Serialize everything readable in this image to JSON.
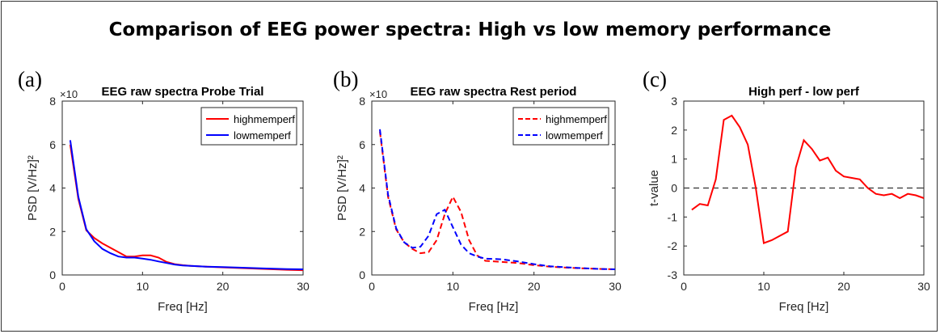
{
  "figure": {
    "title": "Comparison of EEG power spectra: High vs low memory performance",
    "panel_labels": [
      "(a)",
      "(b)",
      "(c)"
    ]
  },
  "chart_data": [
    {
      "type": "line",
      "title": "EEG raw spectra Probe Trial",
      "xlabel": "Freq [Hz]",
      "ylabel": "PSD [V/Hz]²",
      "exponent_label": "×10",
      "xlim": [
        0,
        30
      ],
      "ylim": [
        0,
        8
      ],
      "xticks": [
        0,
        10,
        20,
        30
      ],
      "yticks": [
        0,
        2,
        4,
        6,
        8
      ],
      "legend_position": "top-right",
      "series": [
        {
          "name": "highmemperf",
          "color": "#ff0000",
          "dash": "solid",
          "x": [
            1,
            2,
            3,
            4,
            5,
            6,
            7,
            8,
            9,
            10,
            11,
            12,
            13,
            14,
            15,
            16,
            18,
            20,
            22,
            25,
            28,
            30
          ],
          "y": [
            6.0,
            3.5,
            2.05,
            1.7,
            1.45,
            1.25,
            1.05,
            0.85,
            0.85,
            0.9,
            0.9,
            0.8,
            0.6,
            0.5,
            0.45,
            0.42,
            0.38,
            0.35,
            0.32,
            0.28,
            0.24,
            0.22
          ]
        },
        {
          "name": "lowmemperf",
          "color": "#0000ff",
          "dash": "solid",
          "x": [
            1,
            2,
            3,
            4,
            5,
            6,
            7,
            8,
            9,
            10,
            11,
            12,
            13,
            14,
            15,
            16,
            18,
            20,
            22,
            25,
            28,
            30
          ],
          "y": [
            6.2,
            3.6,
            2.1,
            1.55,
            1.2,
            1.0,
            0.85,
            0.8,
            0.8,
            0.75,
            0.7,
            0.62,
            0.55,
            0.48,
            0.44,
            0.42,
            0.38,
            0.36,
            0.34,
            0.3,
            0.27,
            0.26
          ]
        }
      ]
    },
    {
      "type": "line",
      "title": "EEG raw spectra Rest period",
      "xlabel": "Freq [Hz]",
      "ylabel": "PSD [V/Hz]²",
      "exponent_label": "×10",
      "xlim": [
        0,
        30
      ],
      "ylim": [
        0,
        8
      ],
      "xticks": [
        0,
        10,
        20,
        30
      ],
      "yticks": [
        0,
        2,
        4,
        6,
        8
      ],
      "legend_position": "top-right",
      "series": [
        {
          "name": "highmemperf",
          "color": "#ff0000",
          "dash": "dashed",
          "x": [
            1,
            2,
            3,
            4,
            5,
            6,
            7,
            8,
            9,
            10,
            11,
            12,
            13,
            14,
            16,
            18,
            20,
            22,
            25,
            28,
            30
          ],
          "y": [
            6.6,
            3.6,
            2.1,
            1.5,
            1.2,
            1.0,
            1.05,
            1.6,
            2.8,
            3.6,
            2.9,
            1.6,
            0.9,
            0.65,
            0.6,
            0.55,
            0.45,
            0.38,
            0.32,
            0.28,
            0.26
          ]
        },
        {
          "name": "lowmemperf",
          "color": "#0000ff",
          "dash": "dashed",
          "x": [
            1,
            2,
            3,
            4,
            5,
            6,
            7,
            8,
            9,
            10,
            11,
            12,
            13,
            14,
            16,
            18,
            20,
            22,
            25,
            28,
            30
          ],
          "y": [
            6.7,
            3.7,
            2.15,
            1.5,
            1.25,
            1.3,
            1.8,
            2.8,
            3.0,
            2.2,
            1.4,
            1.0,
            0.85,
            0.75,
            0.72,
            0.62,
            0.5,
            0.4,
            0.33,
            0.28,
            0.26
          ]
        }
      ]
    },
    {
      "type": "line",
      "title": "High perf - low perf",
      "xlabel": "Freq [Hz]",
      "ylabel": "t-value",
      "xlim": [
        0,
        30
      ],
      "ylim": [
        -3,
        3
      ],
      "xticks": [
        0,
        10,
        20,
        30
      ],
      "yticks": [
        -3,
        -2,
        -1,
        0,
        1,
        2,
        3
      ],
      "reference_line": 0,
      "series": [
        {
          "name": "",
          "color": "#ff0000",
          "dash": "solid",
          "x": [
            1,
            2,
            3,
            4,
            5,
            6,
            7,
            8,
            9,
            10,
            11,
            12,
            13,
            14,
            15,
            16,
            17,
            18,
            19,
            20,
            21,
            22,
            23,
            24,
            25,
            26,
            27,
            28,
            29,
            30
          ],
          "y": [
            -0.75,
            -0.55,
            -0.6,
            0.3,
            2.35,
            2.5,
            2.1,
            1.5,
            0.0,
            -1.9,
            -1.8,
            -1.65,
            -1.5,
            0.7,
            1.65,
            1.35,
            0.95,
            1.05,
            0.6,
            0.4,
            0.35,
            0.3,
            0.0,
            -0.2,
            -0.25,
            -0.2,
            -0.35,
            -0.2,
            -0.25,
            -0.35
          ]
        }
      ]
    }
  ]
}
